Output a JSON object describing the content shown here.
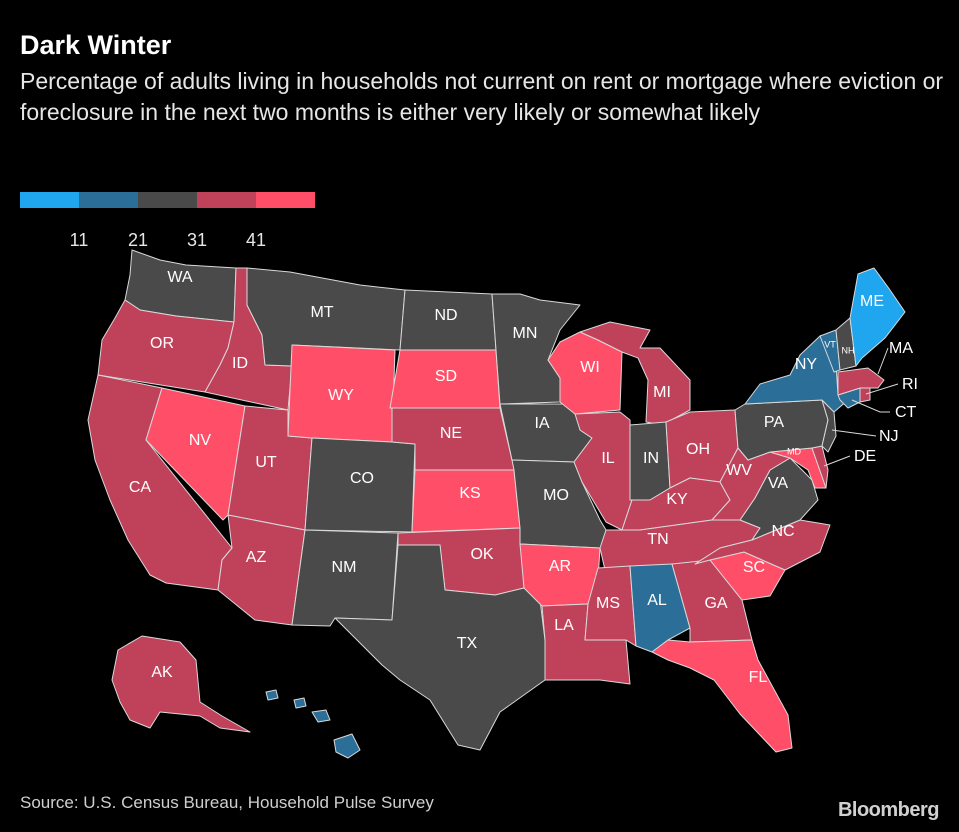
{
  "header": {
    "title": "Dark Winter",
    "subtitle": "Percentage of adults living in households not current on rent or mortgage where eviction or foreclosure in the next two months is either very likely or somewhat likely"
  },
  "legend": {
    "colors": [
      "#1fa6ee",
      "#2b6f98",
      "#4a4a4a",
      "#c0425a",
      "#ff4f68"
    ],
    "ticks": [
      "11",
      "21",
      "31",
      "41"
    ]
  },
  "bins": {
    "b1": "#1fa6ee",
    "b2": "#2b6f98",
    "b3": "#4a4a4a",
    "b4": "#c0425a",
    "b5": "#ff4f68"
  },
  "states": {
    "WA": {
      "label": "WA",
      "bin": "b3"
    },
    "OR": {
      "label": "OR",
      "bin": "b4"
    },
    "CA": {
      "label": "CA",
      "bin": "b4"
    },
    "ID": {
      "label": "ID",
      "bin": "b4"
    },
    "NV": {
      "label": "NV",
      "bin": "b5"
    },
    "UT": {
      "label": "UT",
      "bin": "b4"
    },
    "AZ": {
      "label": "AZ",
      "bin": "b4"
    },
    "MT": {
      "label": "MT",
      "bin": "b3"
    },
    "WY": {
      "label": "WY",
      "bin": "b5"
    },
    "CO": {
      "label": "CO",
      "bin": "b3"
    },
    "NM": {
      "label": "NM",
      "bin": "b3"
    },
    "ND": {
      "label": "ND",
      "bin": "b3"
    },
    "SD": {
      "label": "SD",
      "bin": "b5"
    },
    "NE": {
      "label": "NE",
      "bin": "b4"
    },
    "KS": {
      "label": "KS",
      "bin": "b5"
    },
    "OK": {
      "label": "OK",
      "bin": "b4"
    },
    "TX": {
      "label": "TX",
      "bin": "b3"
    },
    "MN": {
      "label": "MN",
      "bin": "b3"
    },
    "IA": {
      "label": "IA",
      "bin": "b3"
    },
    "MO": {
      "label": "MO",
      "bin": "b3"
    },
    "AR": {
      "label": "AR",
      "bin": "b5"
    },
    "LA": {
      "label": "LA",
      "bin": "b4"
    },
    "WI": {
      "label": "WI",
      "bin": "b5"
    },
    "IL": {
      "label": "IL",
      "bin": "b4"
    },
    "MI": {
      "label": "MI",
      "bin": "b4"
    },
    "IN": {
      "label": "IN",
      "bin": "b3"
    },
    "OH": {
      "label": "OH",
      "bin": "b4"
    },
    "KY": {
      "label": "KY",
      "bin": "b4"
    },
    "TN": {
      "label": "TN",
      "bin": "b4"
    },
    "MS": {
      "label": "MS",
      "bin": "b4"
    },
    "AL": {
      "label": "AL",
      "bin": "b2"
    },
    "GA": {
      "label": "GA",
      "bin": "b4"
    },
    "FL": {
      "label": "FL",
      "bin": "b5"
    },
    "SC": {
      "label": "SC",
      "bin": "b5"
    },
    "NC": {
      "label": "NC",
      "bin": "b4"
    },
    "VA": {
      "label": "VA",
      "bin": "b3"
    },
    "WV": {
      "label": "WV",
      "bin": "b4"
    },
    "MD": {
      "label": "MD",
      "bin": "b5"
    },
    "DE": {
      "label": "DE",
      "bin": "b4"
    },
    "PA": {
      "label": "PA",
      "bin": "b3"
    },
    "NJ": {
      "label": "NJ",
      "bin": "b3"
    },
    "NY": {
      "label": "NY",
      "bin": "b2"
    },
    "CT": {
      "label": "CT",
      "bin": "b2"
    },
    "RI": {
      "label": "RI",
      "bin": "b4"
    },
    "MA": {
      "label": "MA",
      "bin": "b4"
    },
    "VT": {
      "label": "VT",
      "bin": "b2"
    },
    "NH": {
      "label": "NH",
      "bin": "b3"
    },
    "ME": {
      "label": "ME",
      "bin": "b1"
    },
    "AK": {
      "label": "AK",
      "bin": "b4"
    },
    "HI": {
      "label": "",
      "bin": "b2"
    }
  },
  "footer": {
    "source": "Source: U.S. Census Bureau, Household Pulse Survey",
    "brand": "Bloomberg"
  }
}
